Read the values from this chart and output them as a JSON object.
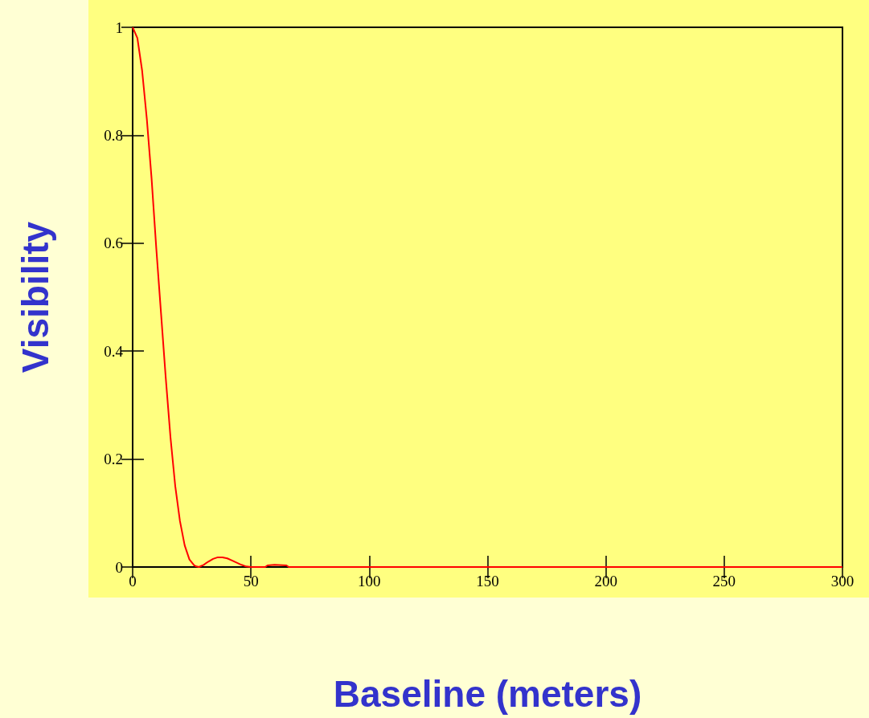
{
  "chart_data": {
    "type": "line",
    "xlabel": "Baseline (meters)",
    "ylabel": "Visibility",
    "x": [
      0,
      2,
      4,
      6,
      8,
      10,
      12,
      14,
      16,
      18,
      20,
      22,
      24,
      26,
      27,
      28,
      30,
      32,
      34,
      36,
      38,
      40,
      42,
      44,
      46,
      48,
      50,
      56,
      57,
      60,
      65,
      66,
      100,
      150,
      200,
      250,
      300
    ],
    "series": [
      {
        "color": "#ff0000",
        "values": [
          1,
          0.98,
          0.92,
          0.83,
          0.72,
          0.59,
          0.47,
          0.35,
          0.24,
          0.15,
          0.085,
          0.04,
          0.014,
          0.003,
          0.001,
          0,
          0.004,
          0.01,
          0.015,
          0.018,
          0.018,
          0.016,
          0.012,
          0.008,
          0.004,
          0.001,
          0,
          0,
          0.003,
          0.004,
          0.003,
          0,
          0,
          0,
          0,
          0,
          0
        ]
      }
    ],
    "xlim": [
      0,
      300
    ],
    "xticks": [
      0,
      50,
      100,
      150,
      200,
      250,
      300
    ],
    "ylim": [
      0,
      1
    ],
    "yticks": [
      0,
      0.2,
      0.4,
      0.6,
      0.8,
      1
    ],
    "grid": false,
    "marker": "none",
    "line_style": "solid"
  }
}
